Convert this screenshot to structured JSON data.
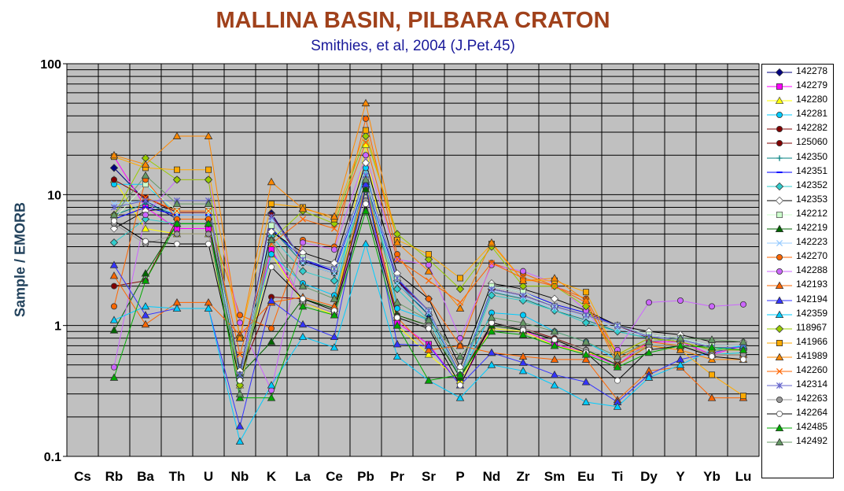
{
  "chart_data": {
    "type": "line",
    "title": "MALLINA BASIN, PILBARA CRATON",
    "subtitle": "Smithies, et al, 2004 (J.Pet.45)",
    "ylabel": "Sample / EMORB",
    "xlabel": "",
    "yscale": "log",
    "ylim": [
      0.1,
      100
    ],
    "yticks": [
      "0.1",
      "1",
      "10",
      "100"
    ],
    "grid": true,
    "plot_background": "#c0c0c0",
    "legend_position": "right",
    "categories": [
      "Cs",
      "Rb",
      "Ba",
      "Th",
      "U",
      "Nb",
      "K",
      "La",
      "Ce",
      "Pb",
      "Pr",
      "Sr",
      "P",
      "Nd",
      "Zr",
      "Sm",
      "Eu",
      "Ti",
      "Dy",
      "Y",
      "Yb",
      "Lu"
    ],
    "series": [
      {
        "name": "142278",
        "color": "#000080",
        "marker": "diamond",
        "values": [
          null,
          16,
          9,
          6.5,
          6.5,
          0.42,
          7.2,
          3.1,
          2.6,
          12,
          2.2,
          1.2,
          0.42,
          1.9,
          1.7,
          1.4,
          1.2,
          1.0,
          0.8,
          0.75,
          0.65,
          0.65
        ]
      },
      {
        "name": "142279",
        "color": "#ff00ff",
        "marker": "square",
        "values": [
          null,
          19.5,
          8,
          5.5,
          5.5,
          0.4,
          3.8,
          1.5,
          1.25,
          11,
          1.05,
          0.72,
          0.35,
          1.0,
          0.92,
          0.72,
          0.62,
          0.5,
          0.75,
          0.75,
          0.6,
          0.7
        ]
      },
      {
        "name": "142280",
        "color": "#ffff00",
        "marker": "triangle",
        "values": [
          null,
          13,
          5.5,
          5,
          5,
          0.35,
          3.5,
          1.5,
          1.2,
          24,
          1.0,
          0.6,
          0.38,
          0.95,
          0.9,
          0.7,
          0.62,
          0.55,
          0.7,
          0.7,
          0.6,
          0.62
        ]
      },
      {
        "name": "142281",
        "color": "#00ccff",
        "marker": "circle",
        "values": [
          null,
          12,
          12,
          7,
          7,
          0.4,
          3.5,
          2.1,
          1.7,
          16,
          1.35,
          1.1,
          0.4,
          1.25,
          1.2,
          0.9,
          0.75,
          0.55,
          0.7,
          0.7,
          0.6,
          0.62
        ]
      },
      {
        "name": "142282",
        "color": "#800000",
        "marker": "circle",
        "values": [
          null,
          13,
          9.5,
          7.3,
          7.3,
          0.42,
          7,
          3,
          2.5,
          13,
          2.2,
          1.3,
          0.45,
          1.9,
          1.7,
          1.4,
          1.2,
          1.0,
          0.8,
          0.75,
          0.65,
          0.65
        ]
      },
      {
        "name": "125060",
        "color": "#800000",
        "marker": "circle",
        "values": [
          null,
          2,
          2.2,
          6.5,
          6.5,
          0.42,
          1.65,
          1.6,
          1.35,
          11,
          1.2,
          1.0,
          0.4,
          1.05,
          0.95,
          0.8,
          0.65,
          0.5,
          0.7,
          0.7,
          0.6,
          0.6
        ]
      },
      {
        "name": "142350",
        "color": "#008080",
        "marker": "plus",
        "values": [
          null,
          7,
          8.5,
          7,
          7,
          0.42,
          5.5,
          3,
          2.5,
          12,
          2.1,
          1.2,
          0.42,
          1.8,
          1.6,
          1.3,
          1.1,
          0.9,
          0.8,
          0.75,
          0.65,
          0.65
        ]
      },
      {
        "name": "142351",
        "color": "#0000ff",
        "marker": "dash",
        "values": [
          null,
          6.5,
          8,
          7,
          7,
          0.42,
          5.5,
          3.2,
          2.6,
          12.5,
          2.25,
          1.3,
          0.42,
          2.0,
          1.8,
          1.45,
          1.25,
          1.0,
          0.85,
          0.8,
          0.7,
          0.7
        ]
      },
      {
        "name": "142352",
        "color": "#33cccc",
        "marker": "diamond",
        "values": [
          null,
          4.3,
          6.5,
          6,
          6,
          0.38,
          4.8,
          2.6,
          2.2,
          11.5,
          1.9,
          1.1,
          0.4,
          1.7,
          1.55,
          1.3,
          1.05,
          0.9,
          0.8,
          0.75,
          0.65,
          0.65
        ]
      },
      {
        "name": "142353",
        "color": "#ffffff",
        "marker": "diamond",
        "values": [
          null,
          5.5,
          7.5,
          8,
          8,
          0.45,
          5.2,
          3.6,
          3.0,
          17.5,
          2.5,
          1.6,
          0.48,
          2.1,
          1.9,
          1.6,
          1.3,
          1.0,
          0.9,
          0.85,
          0.75,
          0.75
        ]
      },
      {
        "name": "142212",
        "color": "#ccffcc",
        "marker": "square",
        "values": [
          null,
          6.5,
          12,
          7.5,
          7.5,
          0.42,
          5.8,
          3.3,
          2.7,
          13,
          2.3,
          1.3,
          0.44,
          2.0,
          1.8,
          1.4,
          1.2,
          1.0,
          0.85,
          0.8,
          0.7,
          0.7
        ]
      },
      {
        "name": "142219",
        "color": "#006600",
        "marker": "triangle",
        "values": [
          null,
          0.92,
          2.5,
          6,
          6,
          0.42,
          0.75,
          1.6,
          1.35,
          11,
          1.2,
          1.0,
          0.4,
          1.0,
          0.92,
          0.78,
          0.65,
          0.5,
          0.7,
          0.7,
          0.6,
          0.6
        ]
      },
      {
        "name": "142223",
        "color": "#99ccff",
        "marker": "cross",
        "values": [
          null,
          8.5,
          9,
          7,
          7,
          0.42,
          6.5,
          3,
          2.5,
          12,
          2.1,
          1.25,
          0.42,
          1.85,
          1.65,
          1.35,
          1.15,
          0.95,
          0.82,
          0.78,
          0.68,
          0.68
        ]
      },
      {
        "name": "142270",
        "color": "#ff6600",
        "marker": "circle",
        "values": [
          null,
          1.4,
          13,
          6.5,
          6.5,
          1.2,
          0.95,
          4.5,
          4.0,
          38,
          3.5,
          1.6,
          0.7,
          3.0,
          2.5,
          2.0,
          1.6,
          0.6,
          0.8,
          0.75,
          0.65,
          0.65
        ]
      },
      {
        "name": "142288",
        "color": "#cc66ff",
        "marker": "circle",
        "values": [
          null,
          0.48,
          7,
          13,
          13,
          1.05,
          0.32,
          4.3,
          3.8,
          20,
          3.2,
          2.9,
          0.8,
          2.9,
          2.6,
          2.1,
          1.3,
          0.65,
          1.5,
          1.55,
          1.4,
          1.45
        ]
      },
      {
        "name": "142193",
        "color": "#ff6600",
        "marker": "triangle",
        "values": [
          null,
          2.4,
          1.02,
          1.5,
          1.5,
          0.85,
          1.5,
          1.65,
          1.4,
          12,
          1.15,
          0.65,
          0.7,
          0.62,
          0.58,
          0.55,
          0.55,
          0.27,
          0.45,
          0.48,
          0.28,
          0.28
        ]
      },
      {
        "name": "142194",
        "color": "#3333ff",
        "marker": "triangle",
        "values": [
          null,
          2.9,
          1.2,
          1.35,
          1.35,
          0.17,
          1.55,
          1.02,
          0.82,
          12,
          0.72,
          0.7,
          0.35,
          0.62,
          0.52,
          0.42,
          0.37,
          0.26,
          0.42,
          0.55,
          0.62,
          0.7
        ]
      },
      {
        "name": "142359",
        "color": "#00ccff",
        "marker": "triangle",
        "values": [
          null,
          1.1,
          1.4,
          1.35,
          1.35,
          0.13,
          0.35,
          0.82,
          0.68,
          4.2,
          0.58,
          0.38,
          0.28,
          0.5,
          0.45,
          0.35,
          0.26,
          0.24,
          0.4,
          0.5,
          0.65,
          0.7
        ]
      },
      {
        "name": "118967",
        "color": "#99cc00",
        "marker": "diamond",
        "values": [
          null,
          7,
          19,
          13,
          13,
          0.35,
          4.5,
          7.5,
          6,
          28,
          5,
          3.2,
          1.9,
          4.0,
          2.0,
          2.0,
          1.4,
          0.6,
          0.8,
          0.75,
          0.65,
          0.65
        ]
      },
      {
        "name": "141966",
        "color": "#ffaa00",
        "marker": "square",
        "values": [
          null,
          19.5,
          16,
          15.5,
          15.5,
          0.8,
          8.5,
          8,
          6.5,
          31,
          4.5,
          3.5,
          2.3,
          4.2,
          2.2,
          2.2,
          1.8,
          0.6,
          0.7,
          0.65,
          0.42,
          0.29
        ]
      },
      {
        "name": "141989",
        "color": "#ff8800",
        "marker": "triangle",
        "values": [
          null,
          20,
          17,
          28,
          28,
          0.8,
          12.5,
          7.8,
          6.8,
          50,
          4.3,
          2.6,
          1.35,
          4.3,
          2.2,
          2.3,
          1.55,
          0.5,
          0.7,
          0.65,
          0.55,
          0.55
        ]
      },
      {
        "name": "142260",
        "color": "#ff6600",
        "marker": "cross",
        "values": [
          null,
          null,
          9.5,
          7.5,
          7.5,
          0.6,
          4.2,
          6.5,
          5.5,
          25,
          3.2,
          2.2,
          1.5,
          3.0,
          2.3,
          2.0,
          1.5,
          0.55,
          0.75,
          0.7,
          0.6,
          0.6
        ]
      },
      {
        "name": "142314",
        "color": "#6666cc",
        "marker": "star",
        "values": [
          null,
          8,
          9,
          9,
          9,
          0.42,
          6.8,
          3.2,
          2.7,
          14,
          2.3,
          1.3,
          0.42,
          1.9,
          1.7,
          1.4,
          1.2,
          1.0,
          0.82,
          0.78,
          0.68,
          0.68
        ]
      },
      {
        "name": "142263",
        "color": "#999999",
        "marker": "circle",
        "values": [
          null,
          6,
          4.2,
          5,
          5,
          0.38,
          4.5,
          1.5,
          1.25,
          9,
          1.15,
          1.0,
          0.42,
          1.05,
          0.95,
          0.78,
          0.65,
          0.55,
          0.7,
          0.7,
          0.6,
          0.6
        ]
      },
      {
        "name": "142264",
        "color": "#ffffff",
        "marker": "circle",
        "values": [
          null,
          6.3,
          4.4,
          4.2,
          4.2,
          0.38,
          2.8,
          1.6,
          1.3,
          8.5,
          1.15,
          0.95,
          0.35,
          1.05,
          0.92,
          0.78,
          0.62,
          0.38,
          0.65,
          0.7,
          0.58,
          0.55
        ]
      },
      {
        "name": "142485",
        "color": "#00aa00",
        "marker": "triangle",
        "values": [
          null,
          0.4,
          2.2,
          6,
          6,
          0.28,
          0.28,
          1.4,
          1.2,
          7.5,
          1.0,
          0.38,
          0.42,
          0.9,
          0.85,
          0.7,
          0.6,
          0.48,
          0.62,
          0.7,
          0.68,
          0.65
        ]
      },
      {
        "name": "142492",
        "color": "#669966",
        "marker": "triangle",
        "values": [
          null,
          7,
          14,
          8.5,
          8.5,
          0.3,
          4.5,
          2.0,
          1.6,
          13,
          1.5,
          1.1,
          0.58,
          1.15,
          1.05,
          0.9,
          0.75,
          0.58,
          0.75,
          0.8,
          0.78,
          0.75
        ]
      }
    ]
  }
}
